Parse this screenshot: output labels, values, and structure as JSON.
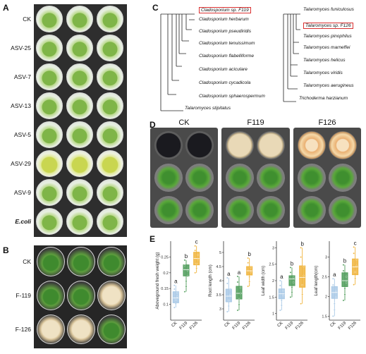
{
  "panels": {
    "a": "A",
    "b": "B",
    "c": "C",
    "d": "D",
    "e": "E"
  },
  "panel_a": {
    "rows": [
      {
        "label": "CK",
        "italic": false,
        "tone": "normal"
      },
      {
        "label": "ASV-25",
        "italic": false,
        "tone": "normal"
      },
      {
        "label": "ASV-7",
        "italic": false,
        "tone": "normal"
      },
      {
        "label": "ASV-13",
        "italic": false,
        "tone": "normal"
      },
      {
        "label": "ASV-5",
        "italic": false,
        "tone": "normal"
      },
      {
        "label": "ASV-29",
        "italic": false,
        "tone": "yellow"
      },
      {
        "label": "ASV-9",
        "italic": false,
        "tone": "normal"
      },
      {
        "label": "E.coli",
        "italic": true,
        "tone": "normal"
      }
    ]
  },
  "panel_b": {
    "rows": [
      {
        "label": "CK"
      },
      {
        "label": "F-119"
      },
      {
        "label": "F-126"
      }
    ]
  },
  "panel_c": {
    "left_tree": [
      "Cladosporium sp. F119",
      "Cladosporium herbarum",
      "Cladosporium pseudiridis",
      "Cladosporium tenuissimum",
      "Cladosporium flabelliforme",
      "Cladosporium aciculare",
      "Cladosporium cycadicola",
      "Cladosporium sphaerospermum",
      "Talaromyces stipitatus"
    ],
    "left_highlight": 0,
    "right_tree": [
      "Talaromyces funiculosus",
      "Talaromyces sp. F126",
      "Talaromyces pinophilus",
      "Talaromyces marneffei",
      "Talaromyces helicus",
      "Talaromyces viridis",
      "Talaromyces aerugineus",
      "Trichoderma harzianum"
    ],
    "right_highlight": 1
  },
  "panel_d": {
    "headers": [
      "CK",
      "F119",
      "F126"
    ]
  },
  "chart_data": [
    {
      "type": "box",
      "ylabel": "Aboveground fresh weight (g)",
      "categories": [
        "CK",
        "F119",
        "F126"
      ],
      "ylim": [
        0.05,
        0.3
      ],
      "yticks": [
        0.1,
        0.15,
        0.2,
        0.25
      ],
      "colors": [
        "#a9c9e6",
        "#4f9c5a",
        "#f0b43c"
      ],
      "boxes": [
        [
          0.09,
          0.105,
          0.12,
          0.14,
          0.16
        ],
        [
          0.14,
          0.19,
          0.21,
          0.225,
          0.24
        ],
        [
          0.2,
          0.225,
          0.245,
          0.265,
          0.285
        ]
      ],
      "letters": [
        "a",
        "b",
        "c"
      ]
    },
    {
      "type": "box",
      "ylabel": "Root length (cm)",
      "categories": [
        "CK",
        "F119",
        "F126"
      ],
      "ylim": [
        2.6,
        5.4
      ],
      "yticks": [
        3.0,
        3.5,
        4.0,
        4.5,
        5.0
      ],
      "colors": [
        "#a9c9e6",
        "#4f9c5a",
        "#f0b43c"
      ],
      "boxes": [
        [
          2.9,
          3.25,
          3.45,
          3.7,
          4.1
        ],
        [
          2.95,
          3.35,
          3.55,
          3.8,
          4.15
        ],
        [
          3.8,
          4.2,
          4.35,
          4.5,
          4.8
        ]
      ],
      "letters": [
        "a",
        "a",
        "b"
      ]
    },
    {
      "type": "box",
      "ylabel": "Leaf width (cm)",
      "categories": [
        "CK",
        "F119",
        "F126"
      ],
      "ylim": [
        0.8,
        3.2
      ],
      "yticks": [
        1.0,
        1.5,
        2.0,
        2.5,
        3.0
      ],
      "colors": [
        "#a9c9e6",
        "#4f9c5a",
        "#f0b43c"
      ],
      "boxes": [
        [
          1.1,
          1.45,
          1.6,
          1.75,
          2.0
        ],
        [
          1.5,
          1.85,
          2.05,
          2.15,
          2.4
        ],
        [
          1.3,
          1.8,
          2.1,
          2.45,
          3.0
        ]
      ],
      "letters": [
        "a",
        "b",
        "b"
      ]
    },
    {
      "type": "box",
      "ylabel": "Leaf length(cm)",
      "categories": [
        "CK",
        "F119",
        "F126"
      ],
      "ylim": [
        1.4,
        3.4
      ],
      "yticks": [
        1.5,
        2.0,
        2.5,
        3.0
      ],
      "colors": [
        "#a9c9e6",
        "#4f9c5a",
        "#f0b43c"
      ],
      "boxes": [
        [
          1.5,
          1.95,
          2.1,
          2.25,
          2.45
        ],
        [
          1.9,
          2.25,
          2.4,
          2.6,
          2.8
        ],
        [
          2.3,
          2.55,
          2.75,
          2.95,
          3.25
        ]
      ],
      "letters": [
        "a",
        "b",
        "c"
      ]
    }
  ]
}
